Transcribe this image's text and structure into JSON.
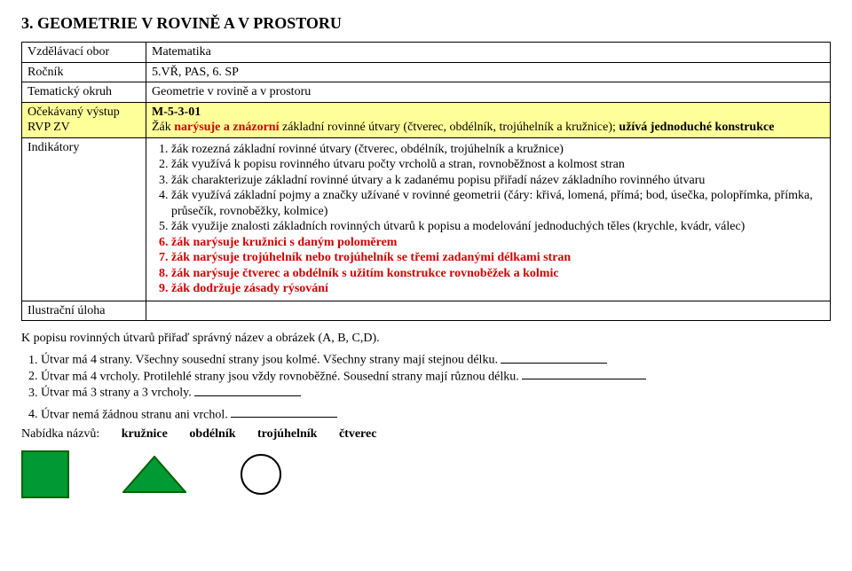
{
  "title": "3. GEOMETRIE V ROVINĚ A V PROSTORU",
  "tableRows": {
    "r1": {
      "label": "Vzdělávací  obor",
      "value": "Matematika"
    },
    "r2": {
      "label": "Ročník",
      "value": "5.VŘ, PAS, 6. SP"
    },
    "r3": {
      "label": "Tematický okruh",
      "value": "Geometrie v rovině a v prostoru"
    },
    "r4": {
      "label": "Očekávaný výstup RVP ZV",
      "code": "M-5-3-01",
      "textA": "Žák ",
      "textRed": "narýsuje a znázorní",
      "textB": " základní rovinné útvary (čtverec, obdélník, trojúhelník a kružnice); ",
      "textBold": "užívá jednoduché konstrukce"
    },
    "r5": {
      "label": "Indikátory"
    },
    "r6": {
      "label": "Ilustrační úloha"
    }
  },
  "indicators": {
    "i1": "žák rozezná základní rovinné útvary (čtverec, obdélník, trojúhelník a kružnice)",
    "i2": "žák využívá k popisu rovinného útvaru počty vrcholů a stran, rovnoběžnost a  kolmost stran",
    "i3": "žák charakterizuje základní rovinné útvary a k zadanému popisu přiřadí název základního rovinného útvaru",
    "i4": "žák využívá základní pojmy a značky užívané v rovinné geometrii (čáry: křivá, lomená, přímá; bod, úsečka, polopřímka, přímka, průsečík, rovnoběžky, kolmice)",
    "i5": "žák využije znalosti základních rovinných útvarů k popisu a modelování jednoduchých těles (krychle, kvádr, válec)",
    "i6": "žák narýsuje kružnici s daným poloměrem",
    "i7": "žák narýsuje trojúhelník nebo trojúhelník se třemi zadanými délkami stran",
    "i8": "žák narýsuje čtverec a obdélník s užitím konstrukce rovnoběžek a kolmic",
    "i9": "žák dodržuje zásady rýsování"
  },
  "task": {
    "intro": "K popisu rovinných útvarů přiřaď správný název a obrázek (A, B, C,D).",
    "q1": "Útvar má 4 strany. Všechny sousední strany jsou kolmé. Všechny strany mají stejnou délku. ",
    "q2": "Útvar má 4 vrcholy. Protilehlé strany jsou vždy rovnoběžné. Sousední strany mají různou délku. ",
    "q3": "Útvar má 3 strany a 3 vrcholy. ",
    "q4": "Útvar nemá žádnou stranu ani vrchol. ",
    "offerLabel": "Nabídka názvů:",
    "o1": "kružnice",
    "o2": "obdélník",
    "o3": "trojúhelník",
    "o4": "čtverec"
  },
  "blankWidths": {
    "long": "120px",
    "short": "140px"
  },
  "shapes": {
    "square": {
      "stroke": "#006400",
      "fill": "#009933",
      "size": 54
    },
    "triangle": {
      "stroke": "#006400",
      "fill": "#009933",
      "w": 72,
      "h": 42
    },
    "circle": {
      "stroke": "#000000",
      "r": 22
    }
  }
}
